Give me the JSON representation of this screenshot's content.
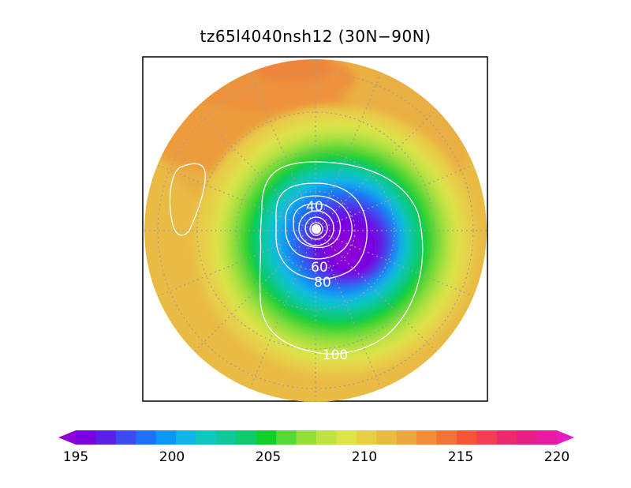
{
  "title": "tz65l4040nsh12 (30N−90N)",
  "colorbar": {
    "min": 195,
    "max": 220,
    "step": 1,
    "tick_labels": [
      "195",
      "200",
      "205",
      "210",
      "215",
      "220"
    ],
    "colors": [
      "#8f00d8",
      "#7a00e0",
      "#5b1ee6",
      "#3a4cef",
      "#1f70f4",
      "#0e96f4",
      "#12b5e6",
      "#10c7c0",
      "#10c79a",
      "#10c96c",
      "#10cf2a",
      "#58d838",
      "#94de3c",
      "#bfe244",
      "#dde34a",
      "#e7cf48",
      "#e9bb44",
      "#eba63f",
      "#ee8d3a",
      "#f07338",
      "#f35535",
      "#f23f52",
      "#ea2a6c",
      "#e61e88",
      "#e81aa0",
      "#e61cbc"
    ]
  },
  "contours": [
    "40",
    "60",
    "80",
    "100"
  ]
}
